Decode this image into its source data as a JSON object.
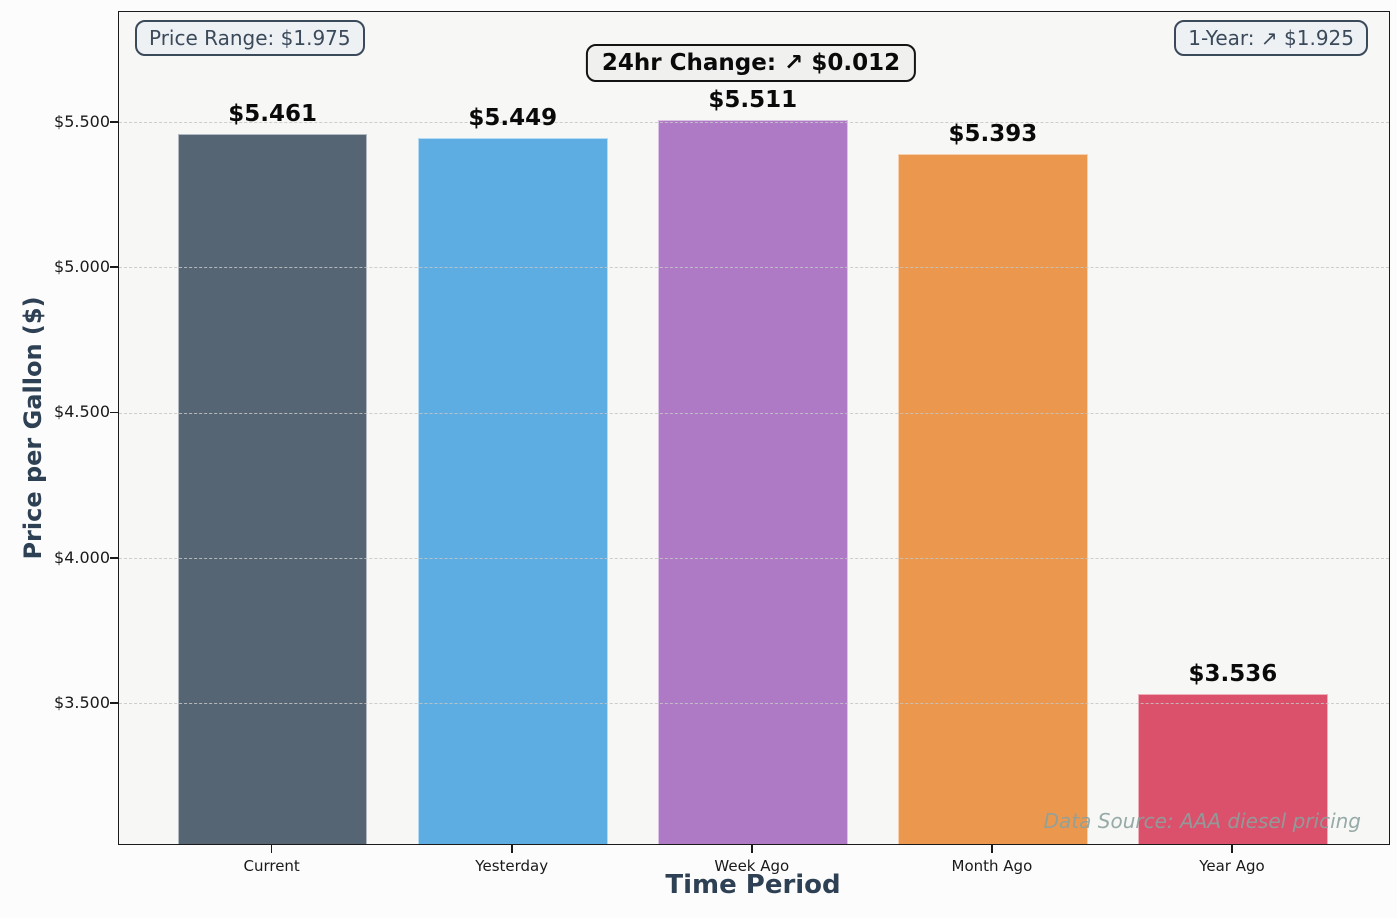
{
  "figure": {
    "background": "#fcfcfc",
    "plot_background": "#f7f7f6",
    "spine_color": "#1a1a1a",
    "grid_color": "#c5c5c5",
    "axis_title_color": "#2e4053"
  },
  "annotations": {
    "price_range_badge": "Price Range: $1.975",
    "change_badge": "24hr Change: ↗ $0.012",
    "year_badge": "1-Year: ↗ $1.925",
    "data_source": "Data Source: AAA diesel pricing"
  },
  "chart_data": {
    "type": "bar",
    "title": "",
    "xlabel": "Time Period",
    "ylabel": "Price per Gallon ($)",
    "categories": [
      "Current",
      "Yesterday",
      "Week Ago",
      "Month Ago",
      "Year Ago"
    ],
    "values": [
      5.461,
      5.449,
      5.511,
      5.393,
      3.536
    ],
    "value_labels": [
      "$5.461",
      "$5.449",
      "$5.511",
      "$5.393",
      "$3.536"
    ],
    "bar_colors": [
      "#566573",
      "#5DADE2",
      "#AF7AC5",
      "#EB984E",
      "#DB516C"
    ],
    "yticks": [
      3.5,
      4.0,
      4.5,
      5.0,
      5.5
    ],
    "ytick_labels": [
      "$3.500",
      "$4.000",
      "$4.500",
      "$5.000",
      "$5.500"
    ],
    "ylim": [
      3.018,
      5.882
    ],
    "xlim": [
      -0.64,
      4.65
    ],
    "bar_width_units": 0.79,
    "grid": "horizontal dashed, drawn over bars",
    "legend": "none"
  }
}
